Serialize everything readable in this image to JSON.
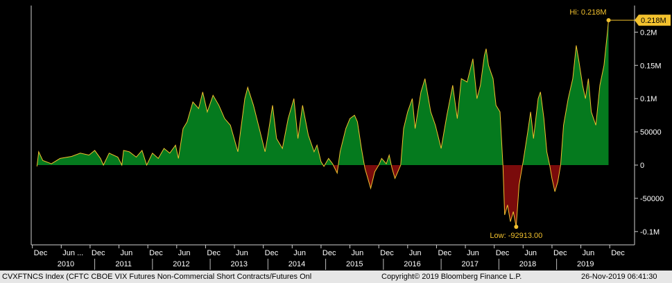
{
  "footer": {
    "left": "CVXFTNCS Index (CFTC CBOE VIX Futures Non-Commercial Short Contracts/Futures Onl",
    "center": "Copyright© 2019 Bloomberg Finance L.P.",
    "right": "26-Nov-2019 06:41:30"
  },
  "chart_data": {
    "type": "area",
    "title": "",
    "xlabel": "",
    "ylabel": "",
    "xlim": [
      2009.9,
      2020.35
    ],
    "ylim": [
      -120000,
      240000
    ],
    "y_ticks": [
      {
        "value": 200000,
        "label": "0.2M"
      },
      {
        "value": 150000,
        "label": "0.15M"
      },
      {
        "value": 100000,
        "label": "0.1M"
      },
      {
        "value": 50000,
        "label": "50000"
      },
      {
        "value": 0,
        "label": "0"
      },
      {
        "value": -50000,
        "label": "-50000"
      },
      {
        "value": -100000,
        "label": "-0.1M"
      }
    ],
    "x_month_ticks": [
      {
        "t": 2009.92,
        "label": "Dec"
      },
      {
        "t": 2010.42,
        "label": "Jun ..."
      },
      {
        "t": 2010.92,
        "label": "Dec"
      },
      {
        "t": 2011.42,
        "label": "Jun"
      },
      {
        "t": 2011.92,
        "label": "Dec"
      },
      {
        "t": 2012.42,
        "label": "Jun"
      },
      {
        "t": 2012.92,
        "label": "Dec"
      },
      {
        "t": 2013.42,
        "label": "Jun"
      },
      {
        "t": 2013.92,
        "label": "Dec"
      },
      {
        "t": 2014.42,
        "label": "Jun"
      },
      {
        "t": 2014.92,
        "label": "Dec"
      },
      {
        "t": 2015.42,
        "label": "Jun"
      },
      {
        "t": 2015.92,
        "label": "Dec"
      },
      {
        "t": 2016.42,
        "label": "Jun"
      },
      {
        "t": 2016.92,
        "label": "Dec"
      },
      {
        "t": 2017.42,
        "label": "Jun"
      },
      {
        "t": 2017.92,
        "label": "Dec"
      },
      {
        "t": 2018.42,
        "label": "Jun"
      },
      {
        "t": 2018.92,
        "label": "Dec"
      },
      {
        "t": 2019.42,
        "label": "Jun"
      },
      {
        "t": 2019.92,
        "label": "Dec"
      }
    ],
    "x_year_labels": [
      {
        "t": 2010.5,
        "label": "2010"
      },
      {
        "t": 2011.5,
        "label": "2011"
      },
      {
        "t": 2012.5,
        "label": "2012"
      },
      {
        "t": 2013.5,
        "label": "2013"
      },
      {
        "t": 2014.5,
        "label": "2014"
      },
      {
        "t": 2015.5,
        "label": "2015"
      },
      {
        "t": 2016.5,
        "label": "2016"
      },
      {
        "t": 2017.5,
        "label": "2017"
      },
      {
        "t": 2018.5,
        "label": "2018"
      },
      {
        "t": 2019.5,
        "label": "2019"
      }
    ],
    "series": [
      {
        "positive_color": "#057a1e",
        "negative_color": "#7a0b0b",
        "line_color": "#f2c12e",
        "points": [
          [
            2010.0,
            -2000
          ],
          [
            2010.03,
            20000
          ],
          [
            2010.1,
            7000
          ],
          [
            2010.25,
            2000
          ],
          [
            2010.4,
            10000
          ],
          [
            2010.6,
            13000
          ],
          [
            2010.75,
            18000
          ],
          [
            2010.9,
            15000
          ],
          [
            2011.0,
            22000
          ],
          [
            2011.1,
            10000
          ],
          [
            2011.15,
            0
          ],
          [
            2011.25,
            18000
          ],
          [
            2011.4,
            12000
          ],
          [
            2011.47,
            0
          ],
          [
            2011.5,
            22000
          ],
          [
            2011.6,
            20000
          ],
          [
            2011.72,
            12000
          ],
          [
            2011.82,
            22000
          ],
          [
            2011.9,
            0
          ],
          [
            2012.0,
            18000
          ],
          [
            2012.1,
            10000
          ],
          [
            2012.2,
            25000
          ],
          [
            2012.3,
            18000
          ],
          [
            2012.4,
            30000
          ],
          [
            2012.45,
            10000
          ],
          [
            2012.53,
            55000
          ],
          [
            2012.6,
            65000
          ],
          [
            2012.7,
            95000
          ],
          [
            2012.8,
            85000
          ],
          [
            2012.87,
            110000
          ],
          [
            2012.95,
            80000
          ],
          [
            2013.05,
            105000
          ],
          [
            2013.15,
            90000
          ],
          [
            2013.25,
            70000
          ],
          [
            2013.35,
            60000
          ],
          [
            2013.48,
            20000
          ],
          [
            2013.6,
            100000
          ],
          [
            2013.65,
            117000
          ],
          [
            2013.75,
            90000
          ],
          [
            2013.85,
            55000
          ],
          [
            2013.95,
            20000
          ],
          [
            2014.0,
            45000
          ],
          [
            2014.08,
            90000
          ],
          [
            2014.15,
            40000
          ],
          [
            2014.25,
            25000
          ],
          [
            2014.35,
            70000
          ],
          [
            2014.45,
            100000
          ],
          [
            2014.52,
            40000
          ],
          [
            2014.6,
            90000
          ],
          [
            2014.7,
            45000
          ],
          [
            2014.8,
            20000
          ],
          [
            2014.85,
            30000
          ],
          [
            2014.92,
            5000
          ],
          [
            2014.97,
            -2000
          ],
          [
            2015.05,
            10000
          ],
          [
            2015.12,
            2000
          ],
          [
            2015.2,
            -12000
          ],
          [
            2015.25,
            20000
          ],
          [
            2015.35,
            55000
          ],
          [
            2015.42,
            70000
          ],
          [
            2015.5,
            75000
          ],
          [
            2015.55,
            65000
          ],
          [
            2015.62,
            25000
          ],
          [
            2015.68,
            -5000
          ],
          [
            2015.73,
            -20000
          ],
          [
            2015.78,
            -35000
          ],
          [
            2015.85,
            -10000
          ],
          [
            2015.92,
            0
          ],
          [
            2015.97,
            10000
          ],
          [
            2016.05,
            2000
          ],
          [
            2016.1,
            15000
          ],
          [
            2016.15,
            -5000
          ],
          [
            2016.2,
            -20000
          ],
          [
            2016.25,
            -10000
          ],
          [
            2016.3,
            0
          ],
          [
            2016.35,
            55000
          ],
          [
            2016.42,
            80000
          ],
          [
            2016.5,
            100000
          ],
          [
            2016.55,
            55000
          ],
          [
            2016.65,
            110000
          ],
          [
            2016.72,
            130000
          ],
          [
            2016.82,
            80000
          ],
          [
            2016.9,
            60000
          ],
          [
            2017.0,
            25000
          ],
          [
            2017.1,
            75000
          ],
          [
            2017.2,
            120000
          ],
          [
            2017.28,
            70000
          ],
          [
            2017.35,
            130000
          ],
          [
            2017.45,
            125000
          ],
          [
            2017.55,
            160000
          ],
          [
            2017.62,
            100000
          ],
          [
            2017.68,
            120000
          ],
          [
            2017.75,
            165000
          ],
          [
            2017.78,
            175000
          ],
          [
            2017.82,
            150000
          ],
          [
            2017.9,
            130000
          ],
          [
            2017.95,
            90000
          ],
          [
            2018.02,
            80000
          ],
          [
            2018.07,
            0
          ],
          [
            2018.1,
            -75000
          ],
          [
            2018.15,
            -60000
          ],
          [
            2018.2,
            -85000
          ],
          [
            2018.25,
            -70000
          ],
          [
            2018.3,
            -92913
          ],
          [
            2018.35,
            -30000
          ],
          [
            2018.42,
            5000
          ],
          [
            2018.5,
            50000
          ],
          [
            2018.55,
            80000
          ],
          [
            2018.6,
            40000
          ],
          [
            2018.68,
            100000
          ],
          [
            2018.72,
            110000
          ],
          [
            2018.78,
            70000
          ],
          [
            2018.83,
            20000
          ],
          [
            2018.88,
            0
          ],
          [
            2018.92,
            -20000
          ],
          [
            2018.97,
            -40000
          ],
          [
            2019.02,
            -25000
          ],
          [
            2019.07,
            0
          ],
          [
            2019.12,
            60000
          ],
          [
            2019.2,
            100000
          ],
          [
            2019.28,
            130000
          ],
          [
            2019.34,
            180000
          ],
          [
            2019.38,
            160000
          ],
          [
            2019.45,
            120000
          ],
          [
            2019.5,
            100000
          ],
          [
            2019.55,
            130000
          ],
          [
            2019.6,
            80000
          ],
          [
            2019.68,
            60000
          ],
          [
            2019.75,
            120000
          ],
          [
            2019.82,
            150000
          ],
          [
            2019.88,
            200000
          ],
          [
            2019.9,
            218000
          ]
        ]
      }
    ],
    "annotations": {
      "high": {
        "t": 2019.9,
        "value": 218000,
        "label": "Hi: 0.218M",
        "badge": "0.218M"
      },
      "low": {
        "t": 2018.3,
        "value": -92913,
        "label": "Low: -92913.00"
      }
    }
  }
}
